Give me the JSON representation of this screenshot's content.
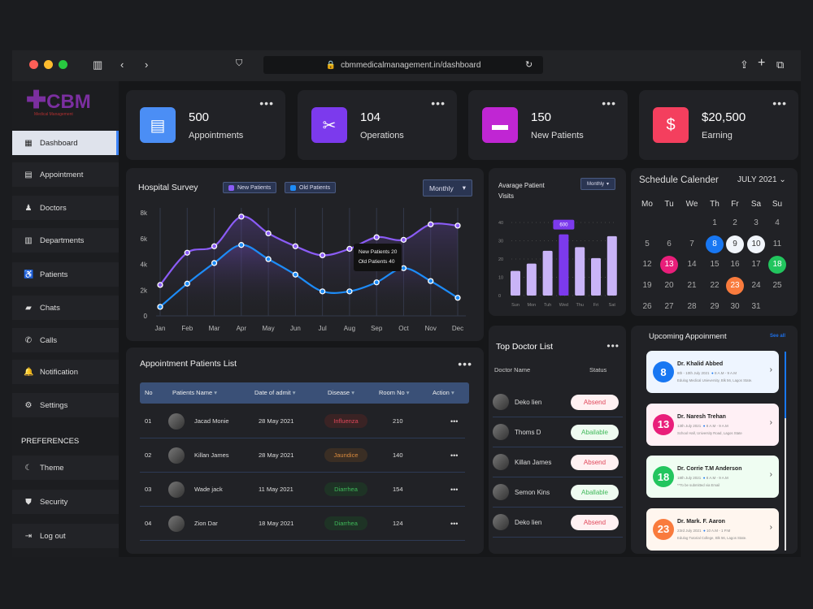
{
  "browser": {
    "url": "cbmmedicalmanagement.in/dashboard"
  },
  "logo": {
    "text": "CBM",
    "subtext": "Medical Management"
  },
  "sidebar": {
    "items": [
      {
        "label": "Dashboard",
        "icon": "grid-icon"
      },
      {
        "label": "Appointment",
        "icon": "calendar-icon"
      },
      {
        "label": "Doctors",
        "icon": "doctor-icon"
      },
      {
        "label": "Departments",
        "icon": "building-icon"
      },
      {
        "label": "Patients",
        "icon": "patient-icon"
      },
      {
        "label": "Chats",
        "icon": "chat-icon"
      },
      {
        "label": "Calls",
        "icon": "phone-icon"
      },
      {
        "label": "Notification",
        "icon": "bell-icon"
      },
      {
        "label": "Settings",
        "icon": "gear-icon"
      }
    ],
    "preferences_label": "PREFERENCES",
    "pref_items": [
      {
        "label": "Theme",
        "icon": "moon-icon"
      },
      {
        "label": "Security",
        "icon": "shield-icon"
      },
      {
        "label": "Log out",
        "icon": "logout-icon"
      }
    ]
  },
  "stats": [
    {
      "value": "500",
      "label": "Appointments",
      "color": "#4b8ef5",
      "icon": "calendar-icon"
    },
    {
      "value": "104",
      "label": "Operations",
      "color": "#7c3aed",
      "icon": "scissors-icon"
    },
    {
      "value": "150",
      "label": "New Patients",
      "color": "#c026d3",
      "icon": "bed-icon"
    },
    {
      "value": "$20,500",
      "label": "Earning",
      "color": "#f43f5e",
      "icon": "money-icon"
    }
  ],
  "survey": {
    "title": "Hospital Survey",
    "select": "Monthly",
    "tooltip": {
      "line1": "New Patients 20",
      "line2": "Old Patients 40"
    },
    "chart_data": {
      "type": "line",
      "title": "Hospital Survey",
      "categories": [
        "Jan",
        "Feb",
        "Mar",
        "Apr",
        "May",
        "Jun",
        "Jul",
        "Aug",
        "Sep",
        "Oct",
        "Nov",
        "Dec"
      ],
      "yticks": [
        "0",
        "2k",
        "4k",
        "6k",
        "8k"
      ],
      "ylim": [
        0,
        8000
      ],
      "series": [
        {
          "name": "New Patients",
          "color": "#8b5cf6",
          "values": [
            2400,
            4900,
            5400,
            7700,
            6400,
            5400,
            4700,
            5200,
            6100,
            5900,
            7100,
            7000
          ]
        },
        {
          "name": "Old Patients",
          "color": "#1d8cf8",
          "values": [
            700,
            2500,
            4100,
            5500,
            4400,
            3200,
            1900,
            1900,
            2600,
            3700,
            2700,
            1400
          ]
        }
      ]
    }
  },
  "visits": {
    "title1": "Avarage Patient",
    "title2": "Visits",
    "select": "Monthly",
    "chart_data": {
      "type": "bar",
      "categories": [
        "Sun",
        "Mon",
        "Tuh",
        "Wed",
        "Thu",
        "Fri",
        "Sat"
      ],
      "values": [
        13.5,
        17.5,
        24.5,
        33.5,
        26.5,
        20.5,
        32.5
      ],
      "ylim": [
        0,
        40
      ],
      "yticks": [
        "0",
        "10",
        "20",
        "30",
        "40"
      ],
      "highlight": "Wed",
      "highlight_label": "600"
    }
  },
  "calendar": {
    "title": "Schedule Calender",
    "month": "JULY 2021",
    "weekdays": [
      "Mo",
      "Tu",
      "We",
      "Th",
      "Fr",
      "Sa",
      "Su"
    ],
    "first_offset": 3,
    "days": 31,
    "marked": {
      "8": "#1877f2",
      "9": "#f1f5fb",
      "10": "#f1f5fb",
      "13": "#e91e7a",
      "18": "#22c55e",
      "23": "#f97b3d"
    }
  },
  "patients": {
    "title": "Appointment Patients List",
    "columns": [
      "No",
      "Patients Name",
      "Date of admit",
      "Disease",
      "Room No",
      "Action"
    ],
    "rows": [
      {
        "no": "01",
        "name": "Jacad Monie",
        "date": "28 May 2021",
        "disease": "Influenza",
        "room": "210",
        "bg": "#3a2324",
        "fg": "#e0475a"
      },
      {
        "no": "02",
        "name": "Killan James",
        "date": "28 May 2021",
        "disease": "Jaundice",
        "room": "140",
        "bg": "#3a2e24",
        "fg": "#d88a3e"
      },
      {
        "no": "03",
        "name": "Wade jack",
        "date": "11 May 2021",
        "disease": "Diarrhea",
        "room": "154",
        "bg": "#1e3325",
        "fg": "#3fb95a"
      },
      {
        "no": "04",
        "name": "Zion Dar",
        "date": "18 May 2021",
        "disease": "Diarrhea",
        "room": "124",
        "bg": "#1e3325",
        "fg": "#3fb95a"
      }
    ]
  },
  "doctors": {
    "title": "Top Doctor List",
    "col_name": "Doctor Name",
    "col_status": "Status",
    "rows": [
      {
        "name": "Deko lien",
        "status": "Absend",
        "ok": false
      },
      {
        "name": "Thoms D",
        "status": "Abailable",
        "ok": true
      },
      {
        "name": "Killan James",
        "status": "Absend",
        "ok": false
      },
      {
        "name": "Semon Kins",
        "status": "Aballable",
        "ok": true
      },
      {
        "name": "Deko lien",
        "status": "Absend",
        "ok": false
      }
    ]
  },
  "upcoming": {
    "title": "Upcoming Appoinment",
    "see_all": "See all",
    "items": [
      {
        "day": "8",
        "doctor": "Dr. Khalid Abbed",
        "date": "8th - 10th July 2021",
        "time": "8 A.M - 9 A.M",
        "place": "Edulog Medical Unieversity, Blk 56, Lagos State.",
        "color": "#1877f2",
        "bg": "#eef5ff"
      },
      {
        "day": "13",
        "doctor": "Dr. Naresh Trehan",
        "date": "13th July 2021",
        "time": "8 A.M - 9 A.M",
        "place": "School Hall, University Road, Lagos State",
        "color": "#e91e7a",
        "bg": "#fff0f5"
      },
      {
        "day": "18",
        "doctor": "Dr. Corrie T.M Anderson",
        "date": "18th July 2021",
        "time": "8 A.M - 9 A.M",
        "place": "**To be submitted via Email",
        "color": "#22c55e",
        "bg": "#effdf2"
      },
      {
        "day": "23",
        "doctor": "Dr. Mark. F. Aaron",
        "date": "23rd July 2021",
        "time": "10 A.M - 1 P.M",
        "place": "Edulog Tutorial College, Blk 56, Lagos State.",
        "color": "#f97b3d",
        "bg": "#fff6ef"
      }
    ]
  }
}
